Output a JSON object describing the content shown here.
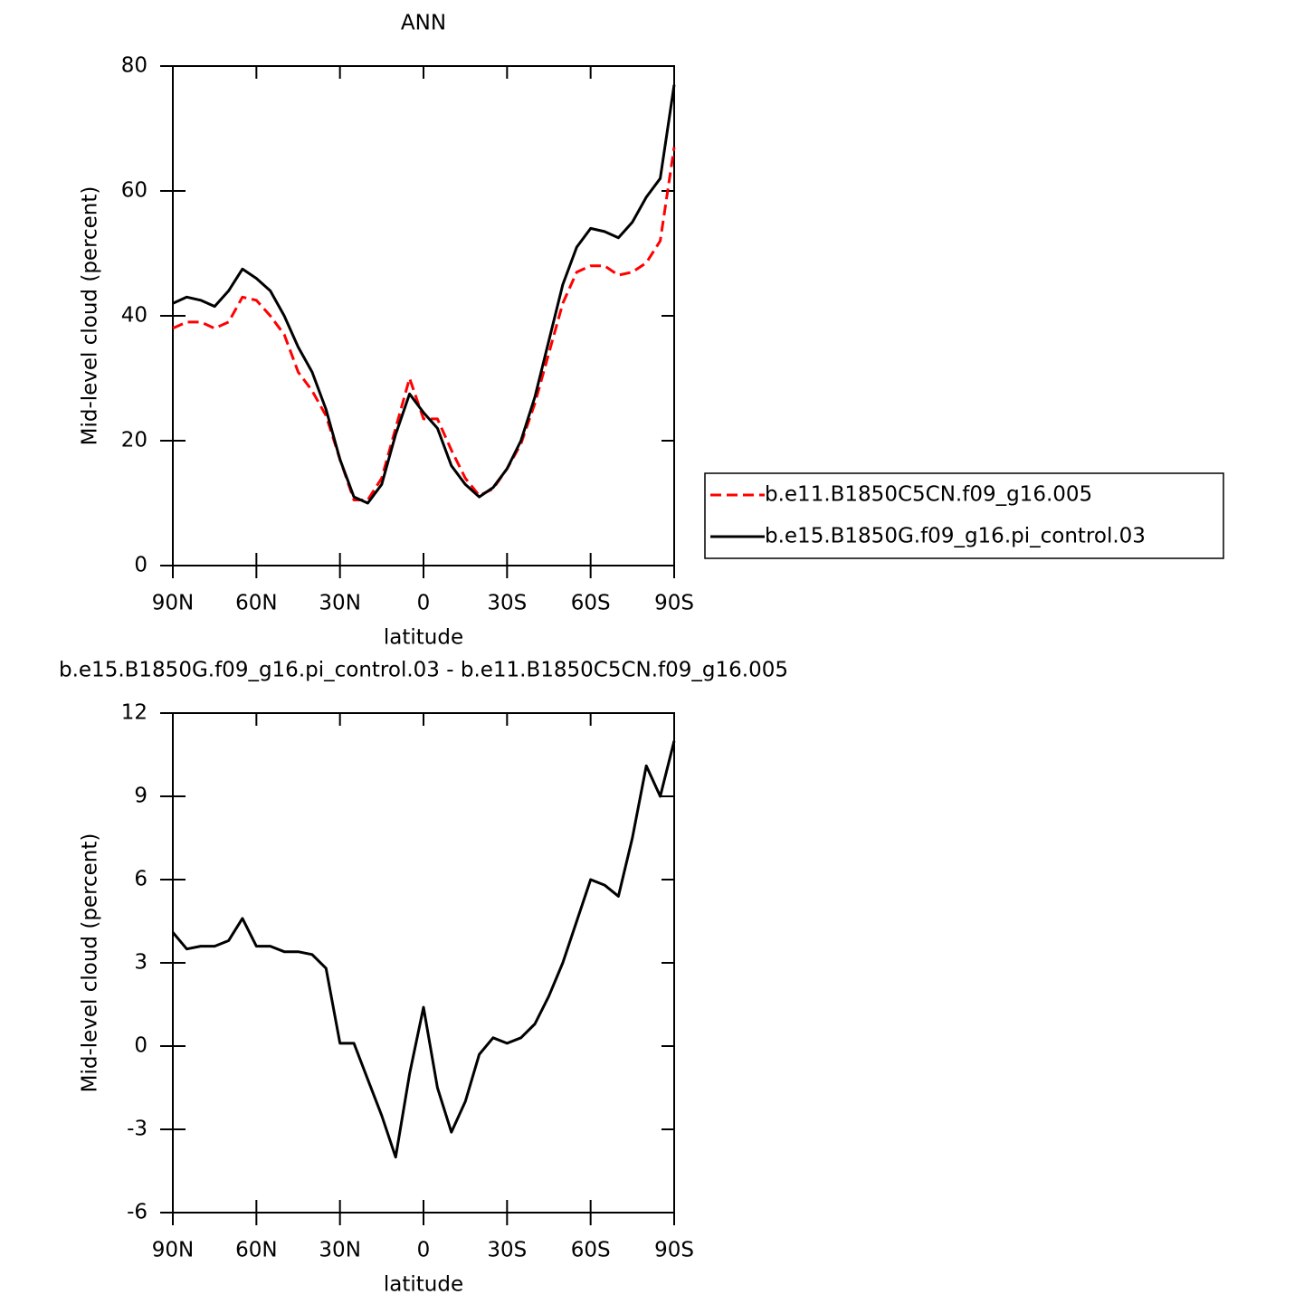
{
  "chart_data": [
    {
      "type": "line",
      "title": "ANN",
      "xlabel": "latitude",
      "ylabel": "Mid-level cloud (percent)",
      "x": [
        90,
        85,
        80,
        75,
        70,
        65,
        60,
        55,
        50,
        45,
        40,
        35,
        30,
        25,
        20,
        15,
        10,
        5,
        0,
        -5,
        -10,
        -15,
        -20,
        -25,
        -30,
        -35,
        -40,
        -45,
        -50,
        -55,
        -60,
        -65,
        -70,
        -75,
        -80,
        -85,
        -90
      ],
      "series": [
        {
          "name": "b.e11.B1850C5CN.f09_g16.005",
          "color": "#ff0000",
          "line_style": "dashed",
          "values": [
            38,
            39,
            39,
            38,
            39,
            43,
            42.5,
            40,
            37,
            31,
            28,
            24,
            17,
            10.5,
            10.5,
            14,
            22,
            30,
            23.5,
            23.5,
            18.5,
            14,
            11.2,
            12.3,
            15.5,
            19.5,
            26,
            34,
            42,
            47,
            48,
            48,
            46.5,
            47,
            48.5,
            52,
            67
          ]
        },
        {
          "name": "b.e15.B1850G.f09_g16.pi_control.03",
          "color": "#000000",
          "line_style": "solid",
          "values": [
            42,
            43,
            42.5,
            41.5,
            44,
            47.5,
            46,
            44,
            40,
            35,
            31,
            25,
            17,
            11,
            10,
            13,
            21,
            27.5,
            24.5,
            22,
            16,
            13,
            11,
            12.5,
            15.5,
            20,
            27,
            36,
            45,
            51,
            54,
            53.5,
            52.5,
            55,
            59,
            62,
            77
          ]
        }
      ],
      "xlim": [
        90,
        -90
      ],
      "xticks": [
        {
          "value": 90,
          "label": "90N"
        },
        {
          "value": 60,
          "label": "60N"
        },
        {
          "value": 30,
          "label": "30N"
        },
        0,
        {
          "value": -30,
          "label": "30S"
        },
        {
          "value": -60,
          "label": "60S"
        },
        {
          "value": -90,
          "label": "90S"
        }
      ],
      "ylim": [
        0,
        80
      ],
      "yticks": [
        0,
        20,
        40,
        60,
        80
      ],
      "legend": "right"
    },
    {
      "type": "line",
      "title": "b.e15.B1850G.f09_g16.pi_control.03 - b.e11.B1850C5CN.f09_g16.005",
      "xlabel": "latitude",
      "ylabel": "Mid-level cloud (percent)",
      "x": [
        90,
        85,
        80,
        75,
        70,
        65,
        60,
        55,
        50,
        45,
        40,
        35,
        30,
        25,
        20,
        15,
        10,
        5,
        0,
        -5,
        -10,
        -15,
        -20,
        -25,
        -30,
        -35,
        -40,
        -45,
        -50,
        -55,
        -60,
        -65,
        -70,
        -75,
        -80,
        -85,
        -90
      ],
      "series": [
        {
          "color": "#000000",
          "line_style": "solid",
          "values": [
            4.1,
            3.5,
            3.6,
            3.6,
            3.8,
            4.6,
            3.6,
            3.6,
            3.4,
            3.4,
            3.3,
            2.8,
            0.1,
            0.1,
            -1.2,
            -2.5,
            -4.0,
            -1.0,
            1.4,
            -1.5,
            -3.1,
            -2.0,
            -0.3,
            0.3,
            0.1,
            0.3,
            0.8,
            1.8,
            3.0,
            4.5,
            6.0,
            5.8,
            5.4,
            7.5,
            10.1,
            9.0,
            11.0
          ]
        }
      ],
      "xlim": [
        90,
        -90
      ],
      "xticks": [
        {
          "value": 90,
          "label": "90N"
        },
        {
          "value": 60,
          "label": "60N"
        },
        {
          "value": 30,
          "label": "30N"
        },
        0,
        {
          "value": -30,
          "label": "30S"
        },
        {
          "value": -60,
          "label": "60S"
        },
        {
          "value": -90,
          "label": "90S"
        }
      ],
      "ylim": [
        -6,
        12
      ],
      "yticks": [
        -6,
        -3,
        0,
        3,
        6,
        9,
        12
      ]
    }
  ]
}
